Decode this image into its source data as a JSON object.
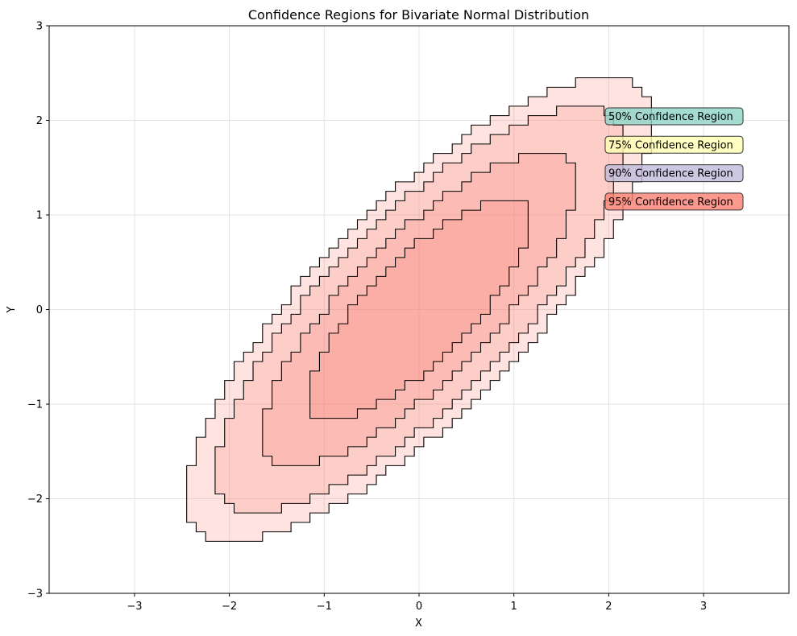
{
  "chart_data": {
    "type": "area",
    "title": "Confidence Regions for Bivariate Normal Distribution",
    "xlabel": "X",
    "ylabel": "Y",
    "xlim": [
      -3.9,
      3.9
    ],
    "ylim": [
      -3,
      3
    ],
    "xticks": [
      -3,
      -2,
      -1,
      0,
      1,
      2,
      3
    ],
    "yticks": [
      -3,
      -2,
      -1,
      0,
      1,
      2,
      3
    ],
    "xtick_labels": [
      "−3",
      "−2",
      "−1",
      "0",
      "1",
      "2",
      "3"
    ],
    "ytick_labels": [
      "−3",
      "−2",
      "−1",
      "0",
      "1",
      "2",
      "3"
    ],
    "grid": true,
    "distribution": {
      "mean": [
        0,
        0
      ],
      "std": [
        1,
        1
      ],
      "correlation": 0.8
    },
    "series": [
      {
        "name": "95% Confidence Region",
        "level": 0.95,
        "color": "#fb8072"
      },
      {
        "name": "90% Confidence Region",
        "level": 0.9,
        "color": "#bebada"
      },
      {
        "name": "75% Confidence Region",
        "level": 0.75,
        "color": "#ffffb3"
      },
      {
        "name": "50% Confidence Region",
        "level": 0.5,
        "color": "#8dd3c7"
      }
    ],
    "legend_order": [
      "50% Confidence Region",
      "75% Confidence Region",
      "90% Confidence Region",
      "95% Confidence Region"
    ],
    "legend_placement": "right",
    "fill_color": "#fb8072",
    "fill_opacity": 0.22
  }
}
